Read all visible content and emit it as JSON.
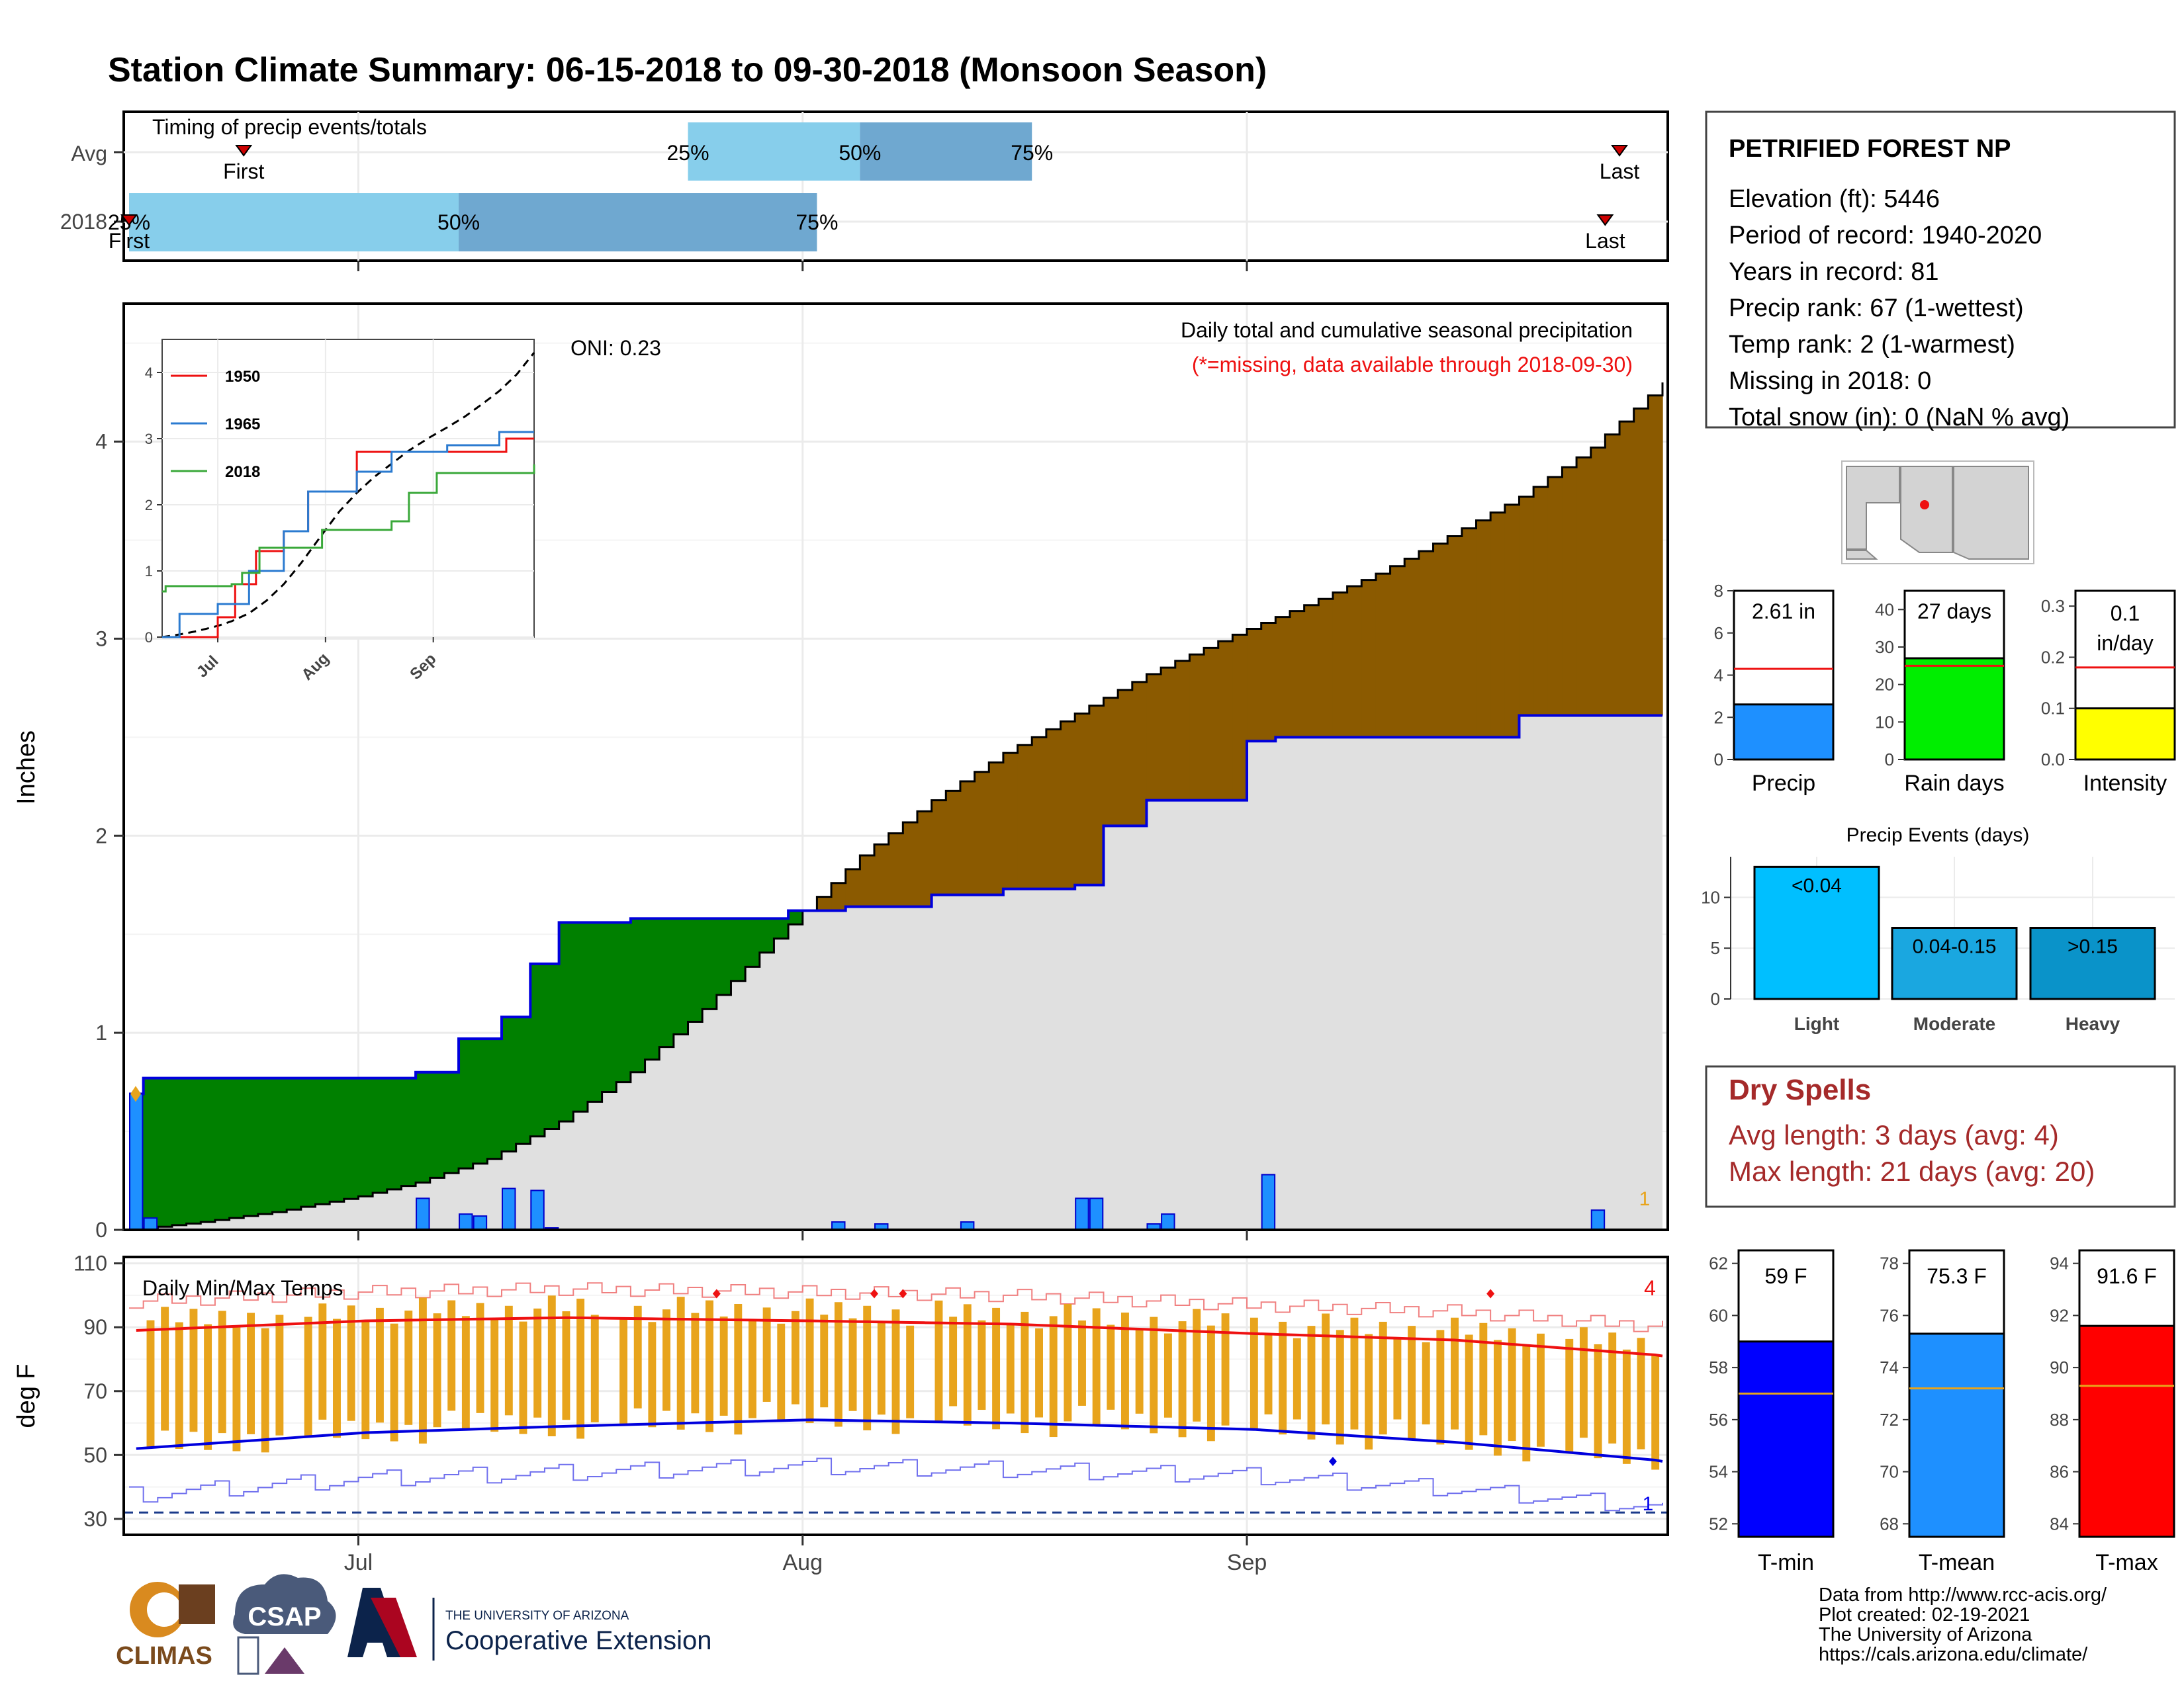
{
  "title": "Station Climate Summary: 06-15-2018 to 09-30-2018 (Monsoon Season)",
  "timing": {
    "title": "Timing of precip events/totals",
    "rows": [
      "Avg",
      "2018"
    ],
    "avg": {
      "first_label": "First",
      "last_label": "Last",
      "p25": "25%",
      "p50": "50%",
      "p75": "75%"
    },
    "y2018": {
      "first_label": "First",
      "last_label": "Last",
      "p25": "25%",
      "p50": "50%",
      "p75": "75%"
    }
  },
  "precip": {
    "ylabel": "Inches",
    "oni": "ONI: 0.23",
    "desc1": "Daily total and cumulative seasonal precipitation",
    "desc2": "(*=missing, data available through 2018-09-30)",
    "corner_count": "1",
    "y_ticks": [
      "0",
      "1",
      "2",
      "3",
      "4"
    ],
    "x_ticks": [
      "Jul",
      "Aug",
      "Sep"
    ]
  },
  "inset": {
    "legend": [
      "1950",
      "1965",
      "2018"
    ],
    "y_ticks": [
      "0",
      "1",
      "2",
      "3",
      "4"
    ],
    "x_ticks": [
      "Jul",
      "Aug",
      "Sep"
    ]
  },
  "temps": {
    "ylabel": "deg F",
    "title": "Daily Min/Max Temps",
    "count_hi": "4",
    "count_lo": "1",
    "y_ticks": [
      "110",
      "90",
      "70",
      "50",
      "30"
    ],
    "x_ticks": [
      "Jul",
      "Aug",
      "Sep"
    ]
  },
  "station": {
    "name": "PETRIFIED FOREST NP",
    "lines": [
      "Elevation (ft): 5446",
      "Period of record: 1940-2020",
      "Years in record: 81",
      "Precip rank: 67 (1-wettest)",
      "Temp rank: 2 (1-warmest)",
      "Missing in 2018: 0",
      "Total snow (in): 0 (NaN % avg)"
    ]
  },
  "mini_bars": [
    {
      "label": "Precip",
      "value_label": "2.61 in",
      "ticks": [
        "0",
        "2",
        "4",
        "6",
        "8"
      ]
    },
    {
      "label": "Rain days",
      "value_label": "27 days",
      "ticks": [
        "0",
        "10",
        "20",
        "30",
        "40"
      ]
    },
    {
      "label": "Intensity",
      "value_label": "0.1",
      "value_label2": "in/day",
      "ticks": [
        "0.0",
        "0.1",
        "0.2",
        "0.3"
      ]
    }
  ],
  "events": {
    "title": "Precip Events (days)",
    "ticks": [
      "0",
      "5",
      "10"
    ],
    "bars": [
      {
        "label": "Light",
        "value_label": "<0.04"
      },
      {
        "label": "Moderate",
        "value_label": "0.04-0.15"
      },
      {
        "label": "Heavy",
        "value_label": ">0.15"
      }
    ]
  },
  "dry_spells": {
    "title": "Dry Spells",
    "avg": "Avg length: 3 days (avg: 4)",
    "max": "Max length: 21 days (avg: 20)"
  },
  "temp_bars": [
    {
      "label": "T-min",
      "value_label": "59 F",
      "ticks": [
        "52",
        "54",
        "56",
        "58",
        "60",
        "62"
      ]
    },
    {
      "label": "T-mean",
      "value_label": "75.3 F",
      "ticks": [
        "68",
        "70",
        "72",
        "74",
        "76",
        "78"
      ]
    },
    {
      "label": "T-max",
      "value_label": "91.6 F",
      "ticks": [
        "84",
        "86",
        "88",
        "90",
        "92",
        "94"
      ]
    }
  ],
  "footer": {
    "lines": [
      "Data from http://www.rcc-acis.org/",
      "Plot created: 02-19-2021",
      "The University of Arizona",
      "https://cals.arizona.edu/climate/"
    ],
    "climas": "CLIMAS",
    "csap": "CSAP",
    "ua_small": "THE UNIVERSITY OF ARIZONA",
    "coop": "Cooperative Extension"
  },
  "colors": {
    "title": "#ee1111",
    "light_blue": "#87ceeb",
    "mid_blue": "#6fa8d0",
    "precip_bar": "#1e90ff",
    "brown": "#8b5a00",
    "green": "#008000",
    "grey": "#e0e0e0",
    "orange": "#e8a41c",
    "red": "#ee1111",
    "blue": "#0000ee"
  },
  "chart_data": [
    {
      "type": "bar",
      "name": "timing",
      "rows": [
        "Avg",
        "2018"
      ],
      "avg": {
        "first": "2018-06-23",
        "p25": "2018-07-24",
        "p50": "2018-08-05",
        "p75": "2018-08-17",
        "last": "2018-09-27"
      },
      "y2018": {
        "first": "2018-06-15",
        "p25": "2018-06-15",
        "p50": "2018-07-08",
        "p75": "2018-08-02",
        "last": "2018-09-26"
      }
    },
    {
      "type": "area",
      "name": "cumulative_precip",
      "x_range": [
        "2018-06-15",
        "2018-09-30"
      ],
      "ylim": [
        0,
        4.7
      ],
      "avg_cumulative": {
        "x": [
          "2018-06-15",
          "2018-06-20",
          "2018-06-25",
          "2018-07-01",
          "2018-07-05",
          "2018-07-10",
          "2018-07-15",
          "2018-07-20",
          "2018-07-25",
          "2018-07-31",
          "2018-08-05",
          "2018-08-10",
          "2018-08-15",
          "2018-08-20",
          "2018-08-25",
          "2018-08-31",
          "2018-09-05",
          "2018-09-10",
          "2018-09-15",
          "2018-09-20",
          "2018-09-25",
          "2018-09-30"
        ],
        "y": [
          0.0,
          0.04,
          0.09,
          0.17,
          0.24,
          0.36,
          0.55,
          0.8,
          1.12,
          1.55,
          1.9,
          2.18,
          2.42,
          2.62,
          2.82,
          3.02,
          3.17,
          3.33,
          3.52,
          3.72,
          3.97,
          4.3
        ]
      },
      "cumulative_2018": {
        "x": [
          "2018-06-15",
          "2018-06-16",
          "2018-07-05",
          "2018-07-08",
          "2018-07-11",
          "2018-07-13",
          "2018-07-15",
          "2018-07-20",
          "2018-07-31",
          "2018-08-04",
          "2018-08-10",
          "2018-08-15",
          "2018-08-20",
          "2018-08-22",
          "2018-08-25",
          "2018-09-01",
          "2018-09-03",
          "2018-09-20",
          "2018-09-30"
        ],
        "y": [
          0.69,
          0.77,
          0.8,
          0.97,
          1.08,
          1.35,
          1.56,
          1.58,
          1.62,
          1.64,
          1.7,
          1.73,
          1.75,
          2.05,
          2.18,
          2.48,
          2.5,
          2.61,
          2.61
        ]
      },
      "daily_2018": {
        "x": [
          "2018-06-15",
          "2018-06-16",
          "2018-07-05",
          "2018-07-08",
          "2018-07-09",
          "2018-07-11",
          "2018-07-13",
          "2018-07-14",
          "2018-08-03",
          "2018-08-06",
          "2018-08-12",
          "2018-08-20",
          "2018-08-21",
          "2018-08-25",
          "2018-08-26",
          "2018-09-02",
          "2018-09-25"
        ],
        "y": [
          0.69,
          0.06,
          0.16,
          0.08,
          0.07,
          0.21,
          0.2,
          0.01,
          0.04,
          0.03,
          0.04,
          0.16,
          0.16,
          0.03,
          0.08,
          0.28,
          0.1
        ]
      }
    },
    {
      "type": "line",
      "name": "inset_cumulative",
      "ylim": [
        0,
        4.5
      ],
      "series": [
        {
          "name": "1950",
          "x": [
            "2018-06-15",
            "2018-06-28",
            "2018-07-01",
            "2018-07-06",
            "2018-07-12",
            "2018-07-20",
            "2018-07-27",
            "2018-08-10",
            "2018-08-25",
            "2018-09-15",
            "2018-09-22",
            "2018-09-30"
          ],
          "y": [
            0,
            0,
            0.3,
            0.8,
            1.3,
            1.6,
            2.2,
            2.8,
            2.8,
            2.8,
            3.0,
            3.0
          ]
        },
        {
          "name": "1965",
          "x": [
            "2018-06-15",
            "2018-06-20",
            "2018-07-01",
            "2018-07-10",
            "2018-07-20",
            "2018-07-27",
            "2018-08-10",
            "2018-08-20",
            "2018-09-05",
            "2018-09-20",
            "2018-09-30"
          ],
          "y": [
            0,
            0.35,
            0.5,
            1.0,
            1.6,
            2.2,
            2.5,
            2.8,
            2.9,
            3.1,
            3.1
          ]
        },
        {
          "name": "2018",
          "x": [
            "2018-06-15",
            "2018-06-16",
            "2018-07-05",
            "2018-07-08",
            "2018-07-13",
            "2018-07-31",
            "2018-08-20",
            "2018-08-25",
            "2018-09-02",
            "2018-09-30"
          ],
          "y": [
            0.69,
            0.77,
            0.8,
            0.97,
            1.35,
            1.62,
            1.75,
            2.18,
            2.48,
            2.61
          ]
        }
      ]
    },
    {
      "type": "bar",
      "name": "daily_temps",
      "ylim": [
        25,
        110
      ],
      "avg_max": {
        "x": [
          "2018-06-15",
          "2018-07-01",
          "2018-07-15",
          "2018-08-01",
          "2018-08-15",
          "2018-09-01",
          "2018-09-15",
          "2018-09-30"
        ],
        "y": [
          89,
          92,
          93,
          92,
          91,
          88,
          86,
          81
        ]
      },
      "avg_min": {
        "x": [
          "2018-06-15",
          "2018-07-01",
          "2018-07-15",
          "2018-08-01",
          "2018-08-15",
          "2018-09-01",
          "2018-09-15",
          "2018-09-30"
        ],
        "y": [
          52,
          57,
          59,
          61,
          60,
          58,
          54,
          48
        ]
      }
    },
    {
      "type": "bar",
      "name": "season_summary",
      "precip_in": 2.61,
      "precip_avg": 4.3,
      "rain_days": 27,
      "rain_days_avg": 25,
      "intensity": 0.1,
      "intensity_avg": 0.18,
      "events": {
        "Light": 13,
        "Moderate": 7,
        "Heavy": 7
      },
      "tmin": 59,
      "tmin_avg": 57,
      "tmean": 75.3,
      "tmean_avg": 73.2,
      "tmax": 91.6,
      "tmax_avg": 89.3
    }
  ]
}
